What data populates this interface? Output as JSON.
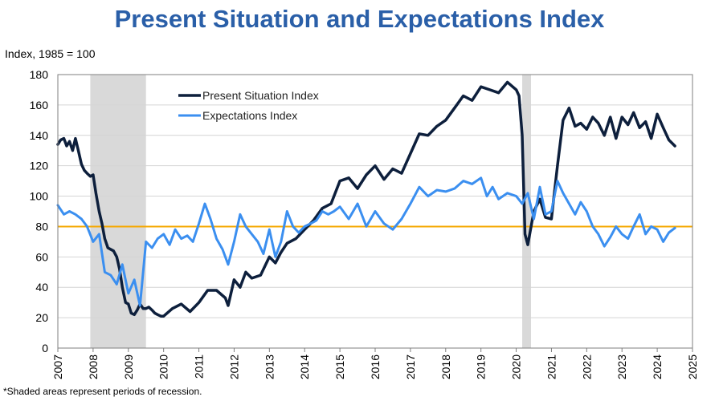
{
  "chart_data": {
    "type": "line",
    "title": "Present Situation and Expectations Index",
    "ylabel": "Index, 1985 = 100",
    "xlabel": "",
    "ylim": [
      0,
      180
    ],
    "yticks": [
      0,
      20,
      40,
      60,
      80,
      100,
      120,
      140,
      160,
      180
    ],
    "xlim": [
      2007,
      2025
    ],
    "xticks": [
      2007,
      2008,
      2009,
      2010,
      2011,
      2012,
      2013,
      2014,
      2015,
      2016,
      2017,
      2018,
      2019,
      2020,
      2021,
      2022,
      2023,
      2024,
      2025
    ],
    "grid": true,
    "legend_position": "top-left",
    "reference_line": {
      "value": 80,
      "color": "#f5a800"
    },
    "recessions": [
      [
        2007.92,
        2009.5
      ],
      [
        2020.17,
        2020.42
      ]
    ],
    "footnote": "*Shaded areas represent periods of recession.",
    "series": [
      {
        "name": "Present Situation Index",
        "color": "#0d1f3c",
        "x": [
          2007.0,
          2007.08,
          2007.17,
          2007.25,
          2007.33,
          2007.42,
          2007.5,
          2007.58,
          2007.67,
          2007.75,
          2007.83,
          2007.92,
          2008.0,
          2008.08,
          2008.17,
          2008.25,
          2008.33,
          2008.42,
          2008.5,
          2008.58,
          2008.67,
          2008.75,
          2008.83,
          2008.92,
          2009.0,
          2009.08,
          2009.17,
          2009.25,
          2009.33,
          2009.42,
          2009.5,
          2009.58,
          2009.67,
          2009.75,
          2009.83,
          2009.92,
          2010.0,
          2010.25,
          2010.5,
          2010.75,
          2011.0,
          2011.25,
          2011.5,
          2011.75,
          2011.83,
          2012.0,
          2012.17,
          2012.33,
          2012.5,
          2012.75,
          2013.0,
          2013.17,
          2013.33,
          2013.5,
          2013.75,
          2014.0,
          2014.25,
          2014.5,
          2014.75,
          2015.0,
          2015.25,
          2015.5,
          2015.75,
          2016.0,
          2016.25,
          2016.5,
          2016.75,
          2017.0,
          2017.25,
          2017.5,
          2017.75,
          2018.0,
          2018.25,
          2018.5,
          2018.75,
          2019.0,
          2019.25,
          2019.5,
          2019.75,
          2020.0,
          2020.08,
          2020.17,
          2020.25,
          2020.33,
          2020.5,
          2020.67,
          2020.83,
          2021.0,
          2021.17,
          2021.33,
          2021.5,
          2021.67,
          2021.83,
          2022.0,
          2022.17,
          2022.33,
          2022.5,
          2022.67,
          2022.83,
          2023.0,
          2023.17,
          2023.33,
          2023.5,
          2023.67,
          2023.83,
          2024.0,
          2024.17,
          2024.33,
          2024.5
        ],
        "values": [
          134,
          137,
          138,
          133,
          136,
          130,
          138,
          130,
          121,
          117,
          115,
          113,
          114,
          102,
          90,
          82,
          72,
          66,
          65,
          64,
          60,
          52,
          40,
          30,
          29,
          23,
          22,
          25,
          29,
          26,
          26,
          27,
          25,
          23,
          22,
          21,
          21,
          26,
          29,
          24,
          30,
          38,
          38,
          33,
          28,
          45,
          40,
          50,
          46,
          48,
          60,
          56,
          63,
          69,
          72,
          78,
          84,
          92,
          95,
          110,
          112,
          105,
          114,
          120,
          111,
          118,
          115,
          128,
          141,
          140,
          146,
          150,
          158,
          166,
          163,
          172,
          170,
          168,
          175,
          170,
          166,
          140,
          75,
          68,
          90,
          98,
          86,
          85,
          120,
          150,
          158,
          146,
          148,
          144,
          152,
          148,
          140,
          152,
          138,
          152,
          147,
          155,
          145,
          149,
          138,
          154,
          145,
          137,
          133
        ]
      },
      {
        "name": "Expectations Index",
        "color": "#3b8ff0",
        "x": [
          2007.0,
          2007.17,
          2007.33,
          2007.5,
          2007.67,
          2007.83,
          2008.0,
          2008.17,
          2008.33,
          2008.5,
          2008.67,
          2008.83,
          2009.0,
          2009.17,
          2009.33,
          2009.5,
          2009.67,
          2009.83,
          2010.0,
          2010.17,
          2010.33,
          2010.5,
          2010.67,
          2010.83,
          2011.0,
          2011.17,
          2011.33,
          2011.5,
          2011.67,
          2011.83,
          2012.0,
          2012.17,
          2012.33,
          2012.5,
          2012.67,
          2012.83,
          2013.0,
          2013.17,
          2013.33,
          2013.5,
          2013.67,
          2013.83,
          2014.0,
          2014.17,
          2014.33,
          2014.5,
          2014.67,
          2014.83,
          2015.0,
          2015.25,
          2015.5,
          2015.75,
          2016.0,
          2016.25,
          2016.5,
          2016.75,
          2017.0,
          2017.25,
          2017.5,
          2017.75,
          2018.0,
          2018.25,
          2018.5,
          2018.75,
          2019.0,
          2019.17,
          2019.33,
          2019.5,
          2019.75,
          2020.0,
          2020.17,
          2020.33,
          2020.5,
          2020.67,
          2020.83,
          2021.0,
          2021.17,
          2021.33,
          2021.5,
          2021.67,
          2021.83,
          2022.0,
          2022.17,
          2022.33,
          2022.5,
          2022.67,
          2022.83,
          2023.0,
          2023.17,
          2023.33,
          2023.5,
          2023.67,
          2023.83,
          2024.0,
          2024.17,
          2024.33,
          2024.5
        ],
        "values": [
          94,
          88,
          90,
          88,
          85,
          80,
          70,
          75,
          50,
          48,
          42,
          55,
          36,
          45,
          28,
          70,
          66,
          72,
          75,
          68,
          78,
          72,
          74,
          70,
          82,
          95,
          85,
          72,
          65,
          55,
          70,
          88,
          80,
          75,
          70,
          62,
          78,
          60,
          70,
          90,
          80,
          76,
          80,
          82,
          84,
          90,
          88,
          90,
          93,
          85,
          95,
          80,
          90,
          82,
          78,
          85,
          95,
          106,
          100,
          104,
          103,
          105,
          110,
          108,
          112,
          100,
          106,
          98,
          102,
          100,
          95,
          102,
          85,
          106,
          88,
          90,
          110,
          102,
          95,
          88,
          96,
          90,
          80,
          75,
          67,
          73,
          80,
          75,
          72,
          80,
          88,
          75,
          80,
          78,
          70,
          76,
          79
        ]
      }
    ]
  }
}
